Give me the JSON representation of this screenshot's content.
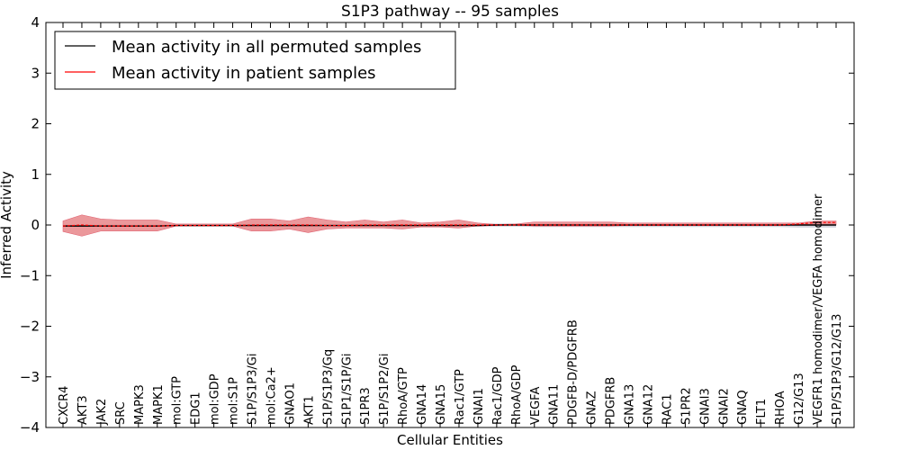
{
  "chart_data": {
    "type": "line",
    "title": "S1P3 pathway -- 95 samples",
    "xlabel": "Cellular Entities",
    "ylabel": "Inferred Activity",
    "ylim": [
      -4,
      4
    ],
    "yticks": [
      4,
      3,
      2,
      1,
      0,
      -1,
      -2,
      -3,
      -4
    ],
    "ytick_labels": [
      "4",
      "3",
      "2",
      "1",
      "0",
      "−1",
      "−2",
      "−3",
      "−4"
    ],
    "categories": [
      "CXCR4",
      "AKT3",
      "JAK2",
      "SRC",
      "MAPK3",
      "MAPK1",
      "mol:GTP",
      "EDG1",
      "mol:GDP",
      "mol:S1P",
      "S1P/S1P3/Gi",
      "mol:Ca2+",
      "GNAO1",
      "AKT1",
      "S1P/S1P3/Gq",
      "S1P1/S1P/Gi",
      "S1PR3",
      "S1P/S1P2/Gi",
      "RhoA/GTP",
      "GNA14",
      "GNA15",
      "Rac1/GTP",
      "GNAI1",
      "Rac1/GDP",
      "RhoA/GDP",
      "VEGFA",
      "GNA11",
      "PDGFB-D/PDGFRB",
      "GNAZ",
      "PDGFRB",
      "GNA13",
      "GNA12",
      "RAC1",
      "S1PR2",
      "GNAI3",
      "GNAI2",
      "GNAQ",
      "FLT1",
      "RHOA",
      "G12/G13",
      "VEGFR1 homodimer/VEGFA homodimer",
      "S1P/S1P3/G12/G13"
    ],
    "legend": [
      "Mean activity in all permuted samples",
      "Mean activity in patient samples"
    ],
    "legend_position": "top-left",
    "series": [
      {
        "name": "Mean activity in all permuted samples",
        "color": "#000000",
        "values": [
          -0.02,
          -0.02,
          -0.02,
          -0.02,
          -0.02,
          -0.02,
          -0.01,
          -0.01,
          -0.01,
          -0.01,
          -0.01,
          -0.01,
          -0.01,
          -0.01,
          -0.01,
          -0.01,
          -0.01,
          -0.01,
          -0.01,
          -0.01,
          -0.01,
          -0.01,
          -0.01,
          0,
          0,
          0,
          0,
          0,
          0,
          0,
          0,
          0,
          0,
          0,
          0,
          0,
          0,
          0,
          0,
          0,
          0,
          0
        ],
        "band_lower": [
          -0.03,
          -0.03,
          -0.03,
          -0.03,
          -0.03,
          -0.03,
          -0.02,
          -0.02,
          -0.02,
          -0.02,
          -0.03,
          -0.03,
          -0.03,
          -0.03,
          -0.03,
          -0.03,
          -0.03,
          -0.03,
          -0.03,
          -0.03,
          -0.03,
          -0.03,
          -0.03,
          -0.03,
          -0.03,
          -0.04,
          -0.04,
          -0.04,
          -0.04,
          -0.04,
          -0.04,
          -0.04,
          -0.04,
          -0.04,
          -0.04,
          -0.04,
          -0.04,
          -0.04,
          -0.04,
          -0.05,
          -0.05,
          -0.05
        ],
        "band_upper": [
          0.01,
          0.01,
          0.01,
          0.01,
          0.01,
          0.01,
          0.02,
          0.02,
          0.02,
          0.02,
          0.02,
          0.02,
          0.02,
          0.02,
          0.02,
          0.02,
          0.02,
          0.02,
          0.02,
          0.02,
          0.02,
          0.02,
          0.02,
          0.03,
          0.03,
          0.03,
          0.03,
          0.03,
          0.03,
          0.03,
          0.03,
          0.03,
          0.03,
          0.03,
          0.03,
          0.03,
          0.03,
          0.03,
          0.03,
          0.04,
          0.04,
          0.04
        ]
      },
      {
        "name": "Mean activity in patient samples",
        "color": "#ff0000",
        "band_color": "#e8868a",
        "values": [
          -0.02,
          0.0,
          -0.02,
          -0.02,
          -0.02,
          -0.02,
          -0.01,
          -0.01,
          -0.01,
          -0.01,
          0.0,
          0.0,
          0.0,
          0.0,
          -0.01,
          -0.01,
          0.0,
          0.0,
          0.0,
          0.0,
          0.0,
          0.0,
          0.0,
          0.0,
          0.0,
          0.0,
          0.0,
          0.0,
          0.0,
          0.0,
          0.0,
          0.0,
          0.0,
          0.0,
          0.0,
          0.0,
          0.0,
          0.0,
          0.0,
          0.02,
          0.05,
          0.05
        ],
        "band_lower": [
          -0.13,
          -0.22,
          -0.12,
          -0.12,
          -0.12,
          -0.12,
          -0.02,
          -0.02,
          -0.02,
          -0.02,
          -0.12,
          -0.12,
          -0.08,
          -0.15,
          -0.08,
          -0.06,
          -0.06,
          -0.06,
          -0.08,
          -0.04,
          -0.04,
          -0.06,
          -0.02,
          -0.01,
          0.0,
          -0.02,
          -0.02,
          -0.02,
          -0.02,
          -0.02,
          -0.01,
          -0.01,
          -0.01,
          -0.01,
          -0.01,
          -0.01,
          -0.01,
          -0.01,
          -0.01,
          0.0,
          0.0,
          0.0
        ],
        "band_upper": [
          0.08,
          0.2,
          0.12,
          0.1,
          0.1,
          0.1,
          0.02,
          0.02,
          0.02,
          0.02,
          0.12,
          0.12,
          0.08,
          0.16,
          0.1,
          0.06,
          0.1,
          0.06,
          0.1,
          0.04,
          0.06,
          0.1,
          0.04,
          0.01,
          0.02,
          0.06,
          0.06,
          0.06,
          0.06,
          0.06,
          0.04,
          0.04,
          0.04,
          0.04,
          0.04,
          0.04,
          0.04,
          0.04,
          0.04,
          0.04,
          0.08,
          0.08
        ]
      }
    ]
  }
}
